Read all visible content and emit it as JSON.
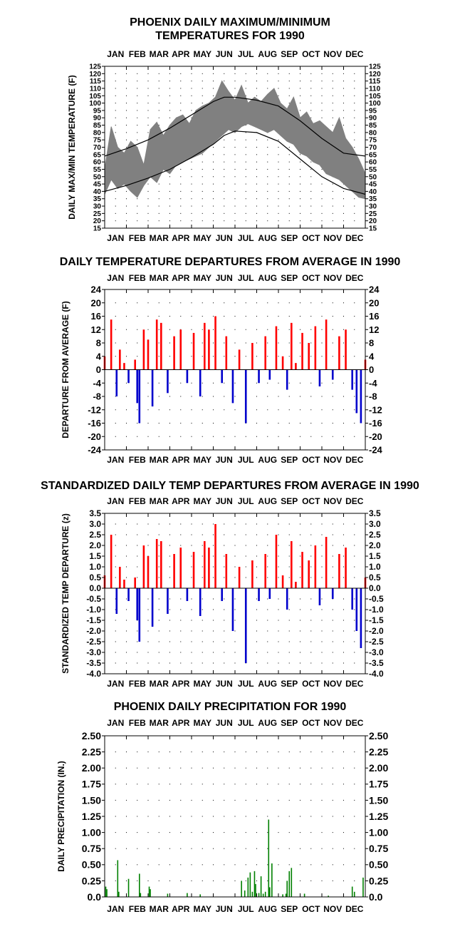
{
  "months": [
    "JAN",
    "FEB",
    "MAR",
    "APR",
    "MAY",
    "JUN",
    "JUL",
    "AUG",
    "SEP",
    "OCT",
    "NOV",
    "DEC"
  ],
  "colors": {
    "range_fill": "#808080",
    "positive": "#ff0000",
    "negative": "#0000cc",
    "precip": "#008000",
    "grid": "#000000"
  },
  "chart_data": [
    {
      "type": "area",
      "title_line1": "PHOENIX DAILY MAXIMUM/MINIMUM",
      "title_line2": "TEMPERATURES FOR 1990",
      "ylabel": "DAILY MAX/MIN TEMPERATURE (F)",
      "ylim": [
        15,
        125
      ],
      "yticks": [
        15,
        20,
        25,
        30,
        35,
        40,
        45,
        50,
        55,
        60,
        65,
        70,
        75,
        80,
        85,
        90,
        95,
        100,
        105,
        110,
        115,
        120,
        125
      ],
      "ytick_labels": [
        "15",
        "20",
        "25",
        "30",
        "35",
        "40",
        "45",
        "50",
        "55",
        "60",
        "65",
        "70",
        "75",
        "80",
        "85",
        "90",
        "95",
        "100",
        "105",
        "110",
        "115",
        "120",
        "125"
      ],
      "grid": true,
      "x_units": "month (0 = Jan 1, 12 = Dec 31)",
      "series": [
        {
          "kind": "daily_max",
          "x": [
            0,
            0.3,
            0.6,
            0.9,
            1.2,
            1.5,
            1.8,
            2.1,
            2.4,
            2.7,
            3.0,
            3.3,
            3.6,
            3.9,
            4.2,
            4.5,
            4.8,
            5.1,
            5.4,
            5.7,
            6.0,
            6.3,
            6.6,
            6.9,
            7.2,
            7.5,
            7.8,
            8.1,
            8.4,
            8.7,
            9.0,
            9.3,
            9.6,
            9.9,
            10.2,
            10.5,
            10.8,
            11.1,
            11.4,
            11.7,
            12
          ],
          "y": [
            55,
            84,
            70,
            66,
            74,
            70,
            58,
            82,
            87,
            78,
            85,
            90,
            92,
            86,
            95,
            98,
            100,
            104,
            115,
            108,
            102,
            112,
            100,
            104,
            101,
            106,
            110,
            100,
            96,
            104,
            90,
            94,
            86,
            88,
            84,
            80,
            90,
            76,
            70,
            62,
            52
          ]
        },
        {
          "kind": "daily_min",
          "x": [
            0,
            0.3,
            0.6,
            0.9,
            1.2,
            1.5,
            1.8,
            2.1,
            2.4,
            2.7,
            3.0,
            3.3,
            3.6,
            3.9,
            4.2,
            4.5,
            4.8,
            5.1,
            5.4,
            5.7,
            6.0,
            6.3,
            6.6,
            6.9,
            7.2,
            7.5,
            7.8,
            8.1,
            8.4,
            8.7,
            9.0,
            9.3,
            9.6,
            9.9,
            10.2,
            10.5,
            10.8,
            11.1,
            11.4,
            11.7,
            12
          ],
          "y": [
            38,
            48,
            42,
            45,
            40,
            36,
            44,
            50,
            46,
            55,
            52,
            58,
            60,
            62,
            64,
            66,
            70,
            74,
            78,
            82,
            80,
            84,
            86,
            84,
            82,
            80,
            82,
            78,
            74,
            72,
            66,
            64,
            60,
            58,
            52,
            50,
            48,
            44,
            40,
            36,
            35
          ]
        },
        {
          "name": "",
          "kind": "normal_max",
          "x": [
            0,
            1,
            2,
            3,
            4,
            5,
            5.5,
            6,
            7,
            8,
            9,
            10,
            11,
            12
          ],
          "y": [
            64,
            69,
            75,
            83,
            92,
            101,
            104,
            104,
            102,
            98,
            88,
            76,
            66,
            64
          ]
        },
        {
          "name": "",
          "kind": "normal_min",
          "x": [
            0,
            1,
            2,
            3,
            4,
            5,
            5.5,
            6,
            7,
            8,
            9,
            10,
            11,
            12
          ],
          "y": [
            40,
            44,
            49,
            55,
            63,
            72,
            78,
            81,
            80,
            74,
            62,
            50,
            42,
            38
          ]
        }
      ]
    },
    {
      "type": "bar",
      "title": "DAILY TEMPERATURE DEPARTURES FROM AVERAGE IN 1990",
      "ylabel": "DEPARTURE FROM AVERAGE (F)",
      "ylim": [
        -24,
        24
      ],
      "yticks": [
        -24,
        -20,
        -16,
        -12,
        -8,
        -4,
        0,
        4,
        8,
        12,
        16,
        20,
        24
      ],
      "ytick_labels": [
        "-24",
        "-20",
        "-16",
        "-12",
        "-8",
        "-4",
        "0",
        "4",
        "8",
        "12",
        "16",
        "20",
        "24"
      ],
      "grid": true,
      "x_units": "month (0 = Jan 1, 12 = Dec 31)",
      "x": [
        0,
        0.3,
        0.55,
        0.7,
        0.9,
        1.1,
        1.4,
        1.5,
        1.6,
        1.8,
        2.0,
        2.2,
        2.4,
        2.6,
        2.9,
        3.2,
        3.5,
        3.8,
        4.1,
        4.4,
        4.6,
        4.8,
        5.1,
        5.4,
        5.6,
        5.9,
        6.2,
        6.5,
        6.8,
        7.1,
        7.4,
        7.6,
        7.9,
        8.2,
        8.4,
        8.6,
        8.8,
        9.1,
        9.4,
        9.7,
        9.9,
        10.2,
        10.5,
        10.8,
        11.1,
        11.4,
        11.6,
        11.8,
        12
      ],
      "values": [
        4,
        15,
        -8,
        6,
        2,
        -4,
        3,
        -10,
        -16,
        12,
        9,
        -11,
        15,
        14,
        -7,
        10,
        12,
        -4,
        11,
        -8,
        14,
        12,
        16,
        -4,
        10,
        -10,
        6,
        -16,
        8,
        -4,
        10,
        -3,
        13,
        4,
        -6,
        14,
        2,
        11,
        8,
        13,
        -5,
        15,
        -3,
        10,
        12,
        -6,
        -13,
        -16,
        3
      ]
    },
    {
      "type": "bar",
      "title": "STANDARDIZED DAILY TEMP DEPARTURES FROM AVERAGE IN 1990",
      "ylabel": "STANDARDIZED TEMP DEPARTURE (z)",
      "ylim": [
        -4.0,
        3.5
      ],
      "yticks": [
        -4.0,
        -3.5,
        -3.0,
        -2.5,
        -2.0,
        -1.5,
        -1.0,
        -0.5,
        0.0,
        0.5,
        1.0,
        1.5,
        2.0,
        2.5,
        3.0,
        3.5
      ],
      "ytick_labels": [
        "-4.0",
        "-3.5",
        "-3.0",
        "-2.5",
        "-2.0",
        "-1.5",
        "-1.0",
        "-0.5",
        "0.0",
        "0.5",
        "1.0",
        "1.5",
        "2.0",
        "2.5",
        "3.0",
        "3.5"
      ],
      "grid": true,
      "x_units": "month (0 = Jan 1, 12 = Dec 31)",
      "x": [
        0,
        0.3,
        0.55,
        0.7,
        0.9,
        1.1,
        1.4,
        1.5,
        1.6,
        1.8,
        2.0,
        2.2,
        2.4,
        2.6,
        2.9,
        3.2,
        3.5,
        3.8,
        4.1,
        4.4,
        4.6,
        4.8,
        5.1,
        5.4,
        5.6,
        5.9,
        6.2,
        6.5,
        6.8,
        7.1,
        7.4,
        7.6,
        7.9,
        8.2,
        8.4,
        8.6,
        8.8,
        9.1,
        9.4,
        9.7,
        9.9,
        10.2,
        10.5,
        10.8,
        11.1,
        11.4,
        11.6,
        11.8,
        12
      ],
      "values": [
        0.6,
        2.5,
        -1.2,
        1.0,
        0.4,
        -0.6,
        0.5,
        -1.5,
        -2.5,
        2.0,
        1.5,
        -1.8,
        2.3,
        2.2,
        -1.2,
        1.6,
        1.9,
        -0.6,
        1.7,
        -1.3,
        2.2,
        1.9,
        3.0,
        -0.6,
        1.6,
        -2.0,
        1.0,
        -3.5,
        1.3,
        -0.6,
        1.6,
        -0.5,
        2.5,
        0.6,
        -1.0,
        2.2,
        0.3,
        1.7,
        1.3,
        2.0,
        -0.8,
        2.4,
        -0.5,
        1.6,
        1.9,
        -1.0,
        -2.0,
        -2.8,
        0.5
      ]
    },
    {
      "type": "bar",
      "title": "PHOENIX DAILY PRECIPITATION FOR 1990",
      "ylabel": "DAILY PRECIPITATION (IN.)",
      "ylim": [
        0,
        2.5
      ],
      "yticks": [
        0,
        0.25,
        0.5,
        0.75,
        1.0,
        1.25,
        1.5,
        1.75,
        2.0,
        2.25,
        2.5
      ],
      "ytick_labels": [
        "0.0",
        "0.25",
        "0.50",
        "0.75",
        "1.00",
        "1.25",
        "1.50",
        "1.75",
        "2.00",
        "2.25",
        "2.50"
      ],
      "grid": true,
      "x_units": "month (0 = Jan 1, 12 = Dec 31)",
      "x": [
        0.05,
        0.1,
        0.6,
        0.65,
        1.1,
        1.6,
        1.65,
        2.05,
        2.1,
        2.9,
        3.8,
        4.4,
        6.3,
        6.45,
        6.6,
        6.7,
        6.8,
        6.9,
        6.95,
        7.1,
        7.2,
        7.3,
        7.4,
        7.55,
        7.6,
        7.7,
        8.2,
        8.35,
        8.4,
        8.5,
        8.6,
        9.2,
        10.3,
        11.4,
        11.5,
        11.9
      ],
      "values": [
        0.16,
        0.12,
        0.57,
        0.08,
        0.28,
        0.36,
        0.06,
        0.16,
        0.12,
        0.05,
        0.06,
        0.04,
        0.25,
        0.1,
        0.3,
        0.38,
        0.08,
        0.4,
        0.2,
        0.06,
        0.32,
        0.05,
        0.08,
        1.2,
        0.15,
        0.52,
        0.04,
        0.05,
        0.25,
        0.4,
        0.45,
        0.05,
        0.02,
        0.16,
        0.08,
        0.3
      ]
    }
  ]
}
